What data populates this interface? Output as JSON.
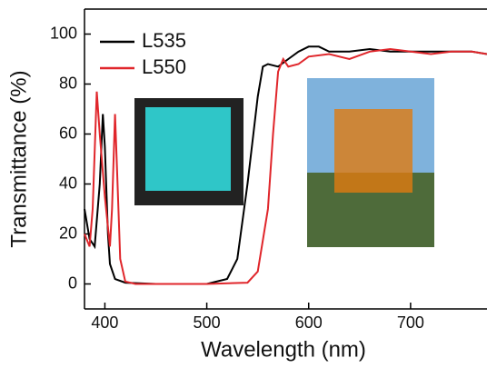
{
  "chart_data": {
    "type": "line",
    "xlabel": "Wavelength (nm)",
    "ylabel": "Transmittance (%)",
    "xlim": [
      380,
      775
    ],
    "ylim": [
      -10,
      110
    ],
    "xticks": [
      400,
      500,
      600,
      700
    ],
    "yticks": [
      0,
      20,
      40,
      60,
      80,
      100
    ],
    "series": [
      {
        "name": "L535",
        "color": "#000000",
        "x": [
          380,
          385,
          390,
          395,
          398,
          400,
          403,
          405,
          410,
          420,
          450,
          500,
          520,
          530,
          540,
          550,
          555,
          560,
          570,
          580,
          590,
          600,
          610,
          620,
          640,
          660,
          680,
          700,
          720,
          740,
          760,
          775
        ],
        "values": [
          30,
          18,
          15,
          40,
          68,
          55,
          20,
          8,
          2,
          0.5,
          0,
          0,
          2,
          10,
          40,
          75,
          87,
          88,
          87,
          90,
          93,
          95,
          95,
          93,
          93,
          94,
          93,
          93,
          93,
          93,
          93,
          92
        ]
      },
      {
        "name": "L550",
        "color": "#e0262b",
        "x": [
          380,
          385,
          388,
          392,
          395,
          400,
          405,
          407,
          410,
          412,
          415,
          420,
          430,
          500,
          540,
          550,
          560,
          565,
          570,
          575,
          580,
          590,
          600,
          620,
          640,
          660,
          680,
          700,
          720,
          740,
          760,
          775
        ],
        "values": [
          20,
          15,
          30,
          77,
          60,
          35,
          15,
          30,
          68,
          45,
          10,
          1,
          0,
          0,
          0.5,
          5,
          30,
          60,
          85,
          90,
          87,
          88,
          91,
          92,
          90,
          93,
          94,
          93,
          92,
          93,
          93,
          92
        ]
      }
    ]
  }
}
